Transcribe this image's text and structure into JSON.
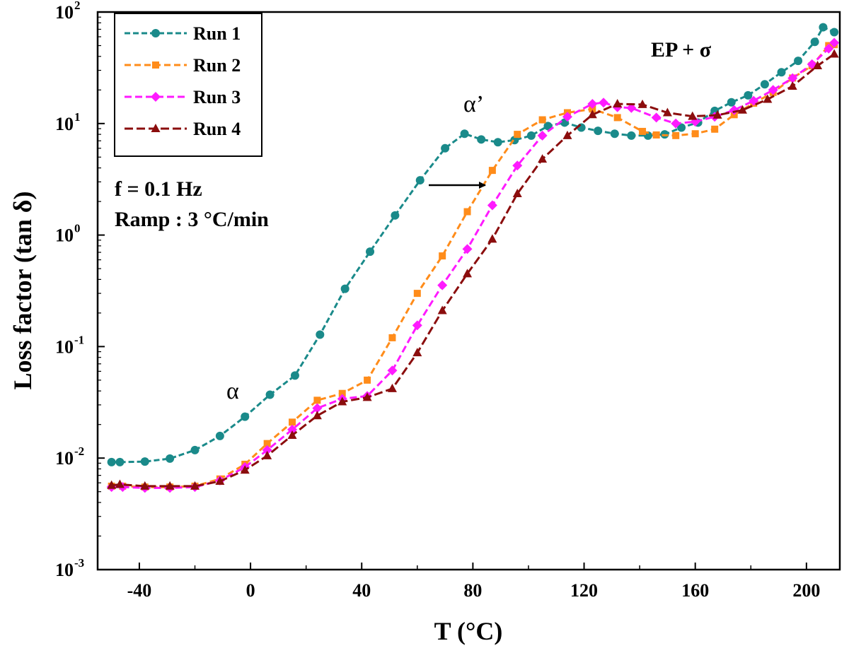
{
  "chart_data": {
    "type": "line",
    "title": "",
    "xlabel": "T (°C)",
    "ylabel": "Loss factor (tan δ)",
    "xlim": [
      -55,
      212
    ],
    "ylim": [
      0.001,
      100
    ],
    "yscale": "log",
    "x_ticks": [
      -40,
      0,
      40,
      80,
      120,
      160,
      200
    ],
    "x_tick_labels": [
      "-40",
      "0",
      "40",
      "80",
      "120",
      "160",
      "200"
    ],
    "y_ticks": [
      0.001,
      0.01,
      0.1,
      1,
      10,
      100
    ],
    "y_tick_labels": [
      {
        "base": "10",
        "exp": "-3"
      },
      {
        "base": "10",
        "exp": "-2"
      },
      {
        "base": "10",
        "exp": "-1"
      },
      {
        "base": "10",
        "exp": "0"
      },
      {
        "base": "10",
        "exp": "1"
      },
      {
        "base": "10",
        "exp": "2"
      }
    ],
    "legend_position": "top-left",
    "series": [
      {
        "name": "Run 1",
        "color": "#1a8a8a",
        "marker": "circle",
        "dash": "8,4",
        "x": [
          -50,
          -47,
          -38,
          -29,
          -20,
          -11,
          -2,
          7,
          16,
          25,
          34,
          43,
          52,
          61,
          70,
          77,
          83,
          89,
          95,
          101,
          107,
          113,
          119,
          125,
          131,
          137,
          143,
          149,
          155,
          161,
          167,
          173,
          179,
          185,
          191,
          197,
          203,
          206,
          210
        ],
        "y": [
          0.0092,
          0.0092,
          0.0093,
          0.0099,
          0.0118,
          0.0158,
          0.0235,
          0.037,
          0.055,
          0.128,
          0.33,
          0.71,
          1.5,
          3.1,
          6.0,
          8.1,
          7.2,
          6.8,
          7.1,
          7.8,
          9.5,
          10.2,
          9.2,
          8.6,
          8.1,
          7.8,
          7.8,
          8.0,
          9.2,
          10.2,
          13.0,
          15.5,
          17.9,
          22.5,
          28.8,
          36.5,
          54.0,
          73.0,
          66.0
        ]
      },
      {
        "name": "Run 2",
        "color": "#ff8c1a",
        "marker": "square",
        "dash": "9,5",
        "x": [
          -50,
          -46,
          -38,
          -29,
          -20,
          -11,
          -2,
          6,
          15,
          24,
          33,
          42,
          51,
          60,
          69,
          78,
          87,
          96,
          105,
          114,
          123,
          132,
          141,
          146,
          153,
          160,
          167,
          174,
          181,
          188,
          195,
          202,
          208,
          210
        ],
        "y": [
          0.0056,
          0.0056,
          0.0055,
          0.0055,
          0.0056,
          0.0065,
          0.0088,
          0.0135,
          0.021,
          0.033,
          0.038,
          0.05,
          0.12,
          0.3,
          0.65,
          1.62,
          3.8,
          8.0,
          10.8,
          12.5,
          13.5,
          11.3,
          8.5,
          7.9,
          7.8,
          8.1,
          8.9,
          12.0,
          15.2,
          19.0,
          25.6,
          33.0,
          50.0,
          51.0
        ]
      },
      {
        "name": "Run 3",
        "color": "#ff1aff",
        "marker": "diamond",
        "dash": "10,5",
        "x": [
          -50,
          -46,
          -38,
          -29,
          -20,
          -11,
          -2,
          6,
          15,
          24,
          33,
          42,
          51,
          60,
          69,
          78,
          87,
          96,
          105,
          114,
          123,
          127,
          132,
          137,
          146,
          153,
          160,
          167,
          174,
          181,
          188,
          195,
          202,
          208,
          210
        ],
        "y": [
          0.0055,
          0.0055,
          0.0054,
          0.0054,
          0.0055,
          0.0063,
          0.0083,
          0.0118,
          0.018,
          0.028,
          0.034,
          0.036,
          0.061,
          0.155,
          0.355,
          0.75,
          1.85,
          4.2,
          7.8,
          11.5,
          15.0,
          15.4,
          14.0,
          13.8,
          11.3,
          10.0,
          10.4,
          11.5,
          13.2,
          16.0,
          20.0,
          25.5,
          34.0,
          47.0,
          53.0
        ]
      },
      {
        "name": "Run 4",
        "color": "#8b0d0d",
        "marker": "triangle",
        "dash": "12,5",
        "x": [
          -50,
          -47,
          -38,
          -29,
          -20,
          -11,
          -2,
          6,
          15,
          24,
          33,
          42,
          51,
          60,
          69,
          78,
          87,
          96,
          105,
          114,
          123,
          132,
          141,
          150,
          159,
          168,
          177,
          186,
          195,
          204,
          210
        ],
        "y": [
          0.0057,
          0.0058,
          0.0056,
          0.0056,
          0.0056,
          0.0062,
          0.0078,
          0.0105,
          0.016,
          0.024,
          0.032,
          0.035,
          0.042,
          0.088,
          0.21,
          0.45,
          0.92,
          2.35,
          4.8,
          7.8,
          12.0,
          15.0,
          14.8,
          12.5,
          11.6,
          11.9,
          13.2,
          16.5,
          21.6,
          33.0,
          42.0
        ]
      }
    ],
    "legend": [
      "Run 1",
      "Run 2",
      "Run 3",
      "Run 4"
    ],
    "annotations": {
      "conditions_line1": "f = 0.1 Hz",
      "conditions_line2": "Ramp : 3 °C/min",
      "alpha": "α",
      "alpha_prime": "α’",
      "ep_sigma": "EP + σ"
    }
  }
}
